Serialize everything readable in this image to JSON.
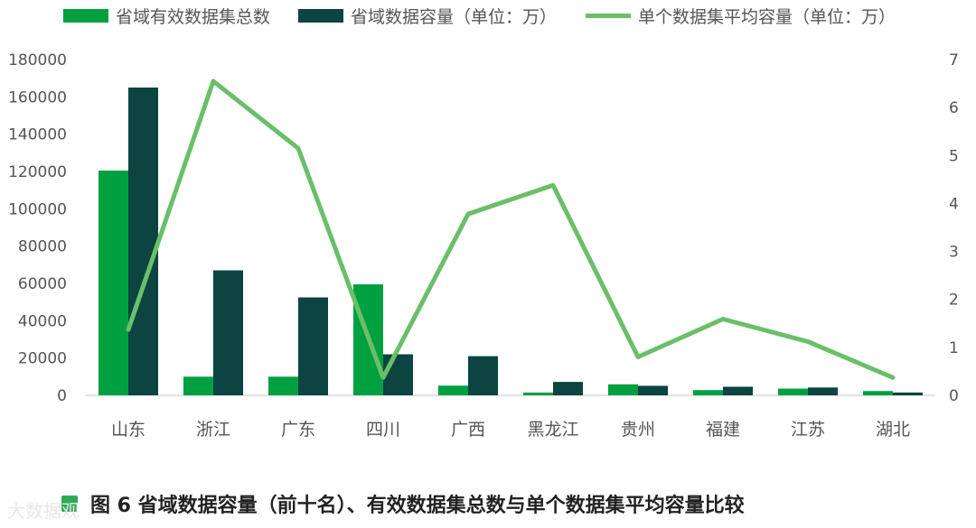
{
  "chart_data": {
    "type": "bar",
    "categories": [
      "山东",
      "浙江",
      "广东",
      "四川",
      "广西",
      "黑龙江",
      "贵州",
      "福建",
      "江苏",
      "湖北"
    ],
    "series": [
      {
        "name": "省域有效数据集总数",
        "type": "bar",
        "axis": "left",
        "color": "#00a041",
        "values": [
          120500,
          10000,
          10000,
          59500,
          5200,
          1500,
          5900,
          2800,
          3600,
          2300
        ]
      },
      {
        "name": "省域数据容量（单位：万）",
        "type": "bar",
        "axis": "left",
        "color": "#0b4440",
        "values": [
          165000,
          67000,
          52500,
          22000,
          21000,
          7200,
          5100,
          4600,
          4200,
          1500
        ]
      },
      {
        "name": "单个数据集平均容量（单位：万）",
        "type": "line",
        "axis": "right",
        "color": "#6abf69",
        "values": [
          1.37,
          6.55,
          5.15,
          0.37,
          3.78,
          4.38,
          0.8,
          1.59,
          1.12,
          0.37
        ]
      }
    ],
    "y_left": {
      "min": 0,
      "max": 180000,
      "ticks": [
        "0",
        "20000",
        "40000",
        "60000",
        "80000",
        "100000",
        "120000",
        "140000",
        "160000",
        "180000"
      ]
    },
    "y_right": {
      "min": 0,
      "max": 7,
      "ticks": [
        "0",
        "1",
        "2",
        "3",
        "4",
        "5",
        "6",
        "7"
      ]
    },
    "grid": false,
    "legend_position": "top"
  },
  "caption": "图 6  省域数据容量（前十名）、有效数据集总数与单个数据集平均容量比较",
  "watermark": "大数据观"
}
